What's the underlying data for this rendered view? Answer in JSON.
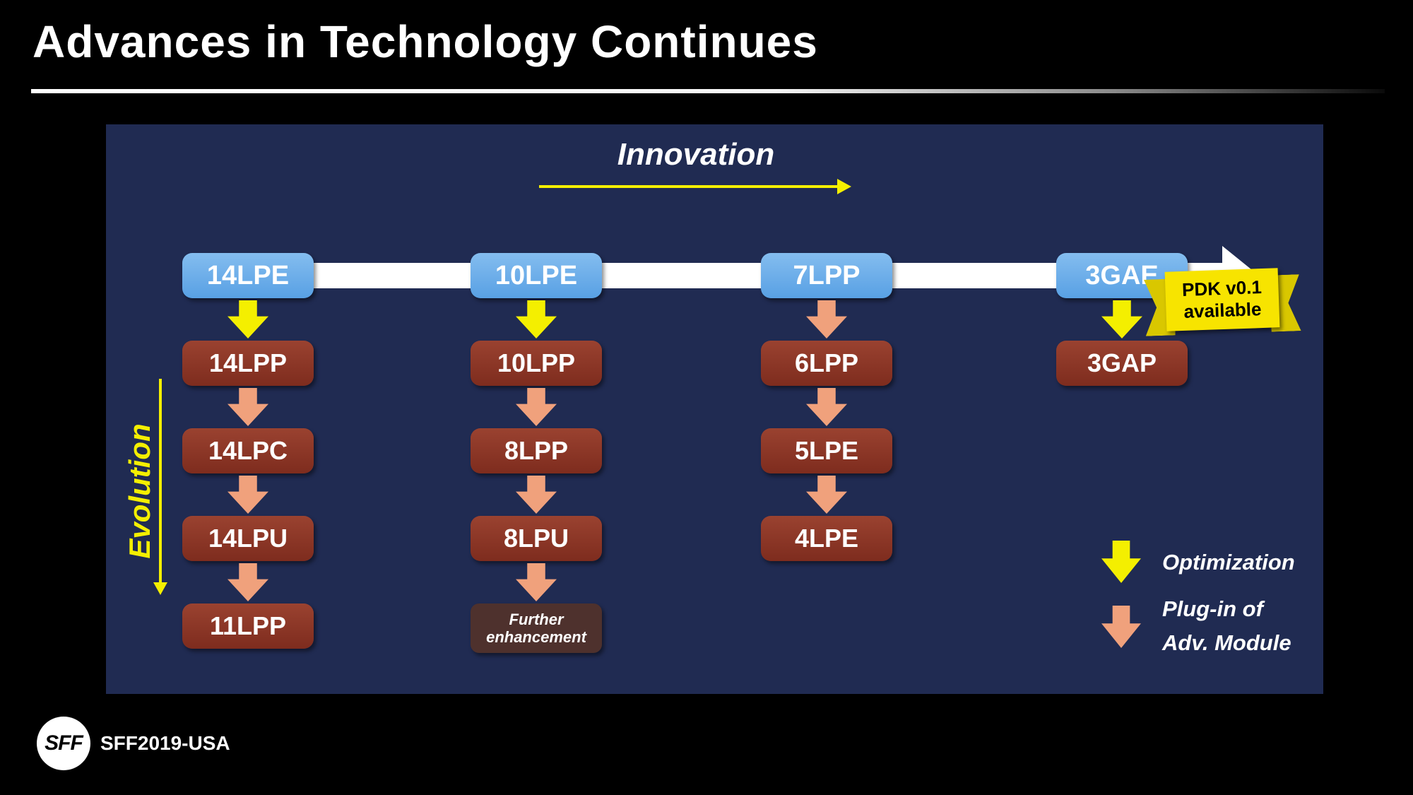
{
  "slide": {
    "title": "Advances in Technology Continues",
    "logo_text": "SFF",
    "footer_text": "SFF2019-USA"
  },
  "diagram": {
    "innovation_label": "Innovation",
    "evolution_label": "Evolution",
    "pdk_badge": {
      "line1": "PDK v0.1",
      "line2": "available"
    },
    "columns": [
      {
        "head": "14LPE",
        "items": [
          "14LPP",
          "14LPC",
          "14LPU",
          "11LPP"
        ]
      },
      {
        "head": "10LPE",
        "items": [
          "10LPP",
          "8LPP",
          "8LPU",
          "Further enhancement"
        ]
      },
      {
        "head": "7LPP",
        "items": [
          "6LPP",
          "5LPE",
          "4LPE"
        ]
      },
      {
        "head": "3GAE",
        "items": [
          "3GAP"
        ]
      }
    ],
    "legend": {
      "optimization": "Optimization",
      "plugin_line1": "Plug-in of",
      "plugin_line2": "Adv. Module"
    },
    "colors": {
      "background": "#000000",
      "panel": "#202b52",
      "head_box_blue": "#5ba3e6",
      "item_box_maroon": "#8a3223",
      "note_box": "#4e312d",
      "arrow_yellow": "#f4ef00",
      "arrow_salmon": "#f0a17c",
      "timeline_white": "#ffffff",
      "ribbon_yellow": "#f7e400"
    }
  }
}
